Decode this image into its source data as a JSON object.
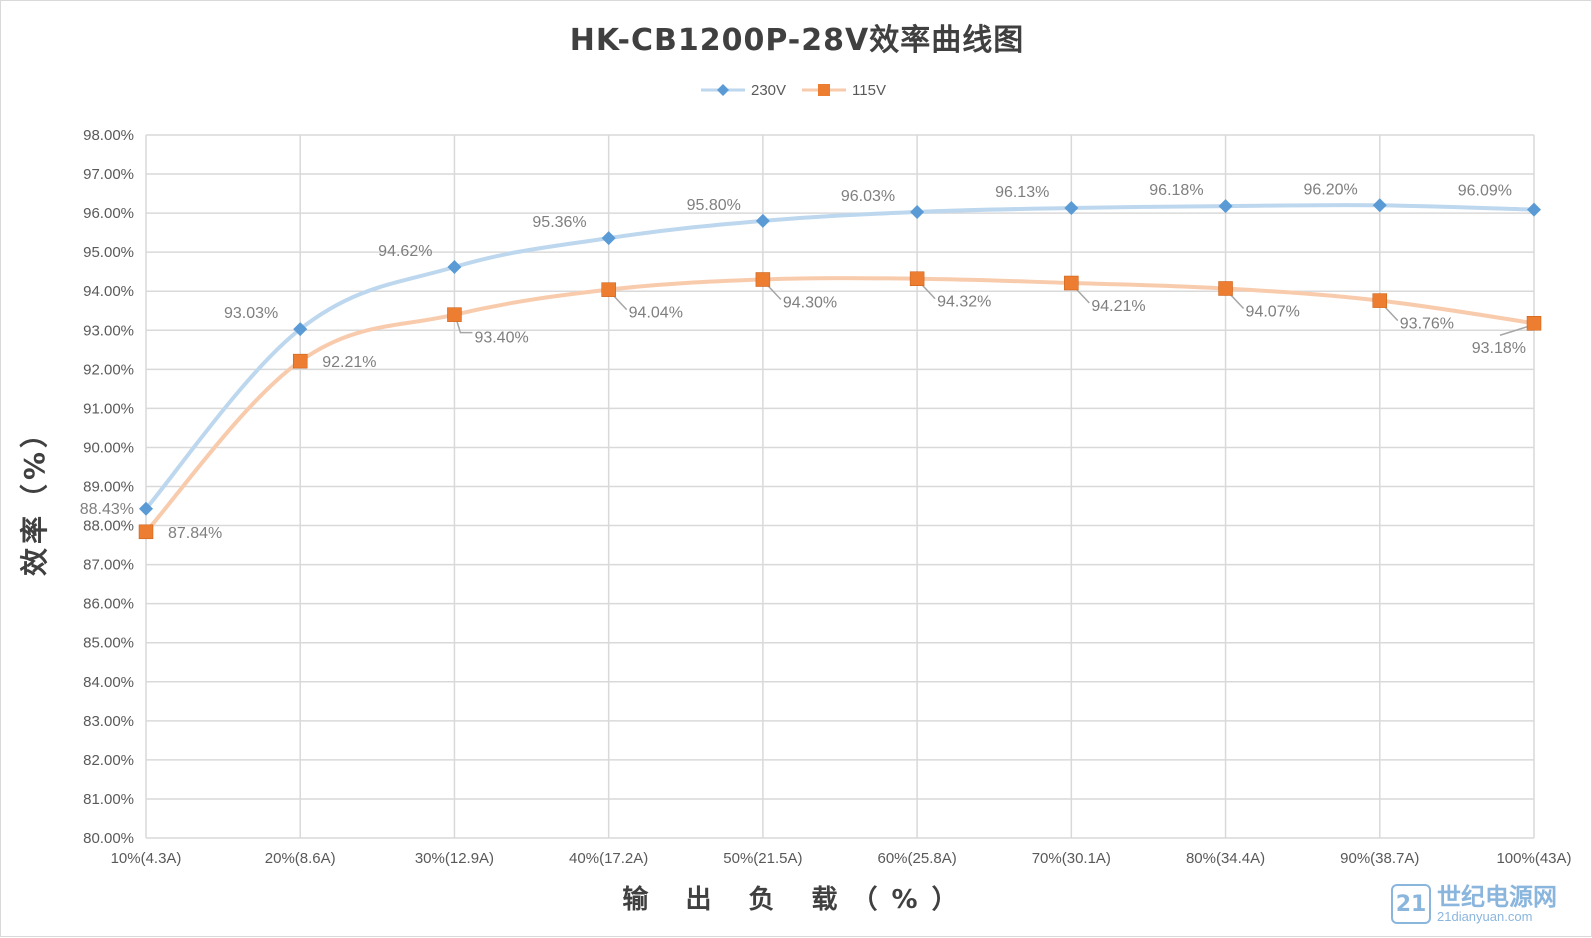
{
  "chart_data": {
    "type": "line",
    "title": "HK-CB1200P-28V效率曲线图",
    "xlabel": "输 出 负 载（%）",
    "ylabel": "效率（%）",
    "categories": [
      "10%(4.3A)",
      "20%(8.6A)",
      "30%(12.9A)",
      "40%(17.2A)",
      "50%(21.5A)",
      "60%(25.8A)",
      "70%(30.1A)",
      "80%(34.4A)",
      "90%(38.7A)",
      "100%(43A)"
    ],
    "ylim": [
      80,
      98
    ],
    "yticks": [
      "80.00%",
      "81.00%",
      "82.00%",
      "83.00%",
      "84.00%",
      "85.00%",
      "86.00%",
      "87.00%",
      "88.00%",
      "89.00%",
      "90.00%",
      "91.00%",
      "92.00%",
      "93.00%",
      "94.00%",
      "95.00%",
      "96.00%",
      "97.00%",
      "98.00%"
    ],
    "grid": true,
    "legend_position": "top",
    "series": [
      {
        "name": "230V",
        "values": [
          88.43,
          93.03,
          94.62,
          95.36,
          95.8,
          96.03,
          96.13,
          96.18,
          96.2,
          96.09
        ],
        "labels": [
          "88.43%",
          "93.03%",
          "94.62%",
          "95.36%",
          "95.80%",
          "96.03%",
          "96.13%",
          "96.18%",
          "96.20%",
          "96.09%"
        ],
        "line_color": "#bdd7ee",
        "marker_color": "#5b9bd5",
        "marker": "diamond"
      },
      {
        "name": "115V",
        "values": [
          87.84,
          92.21,
          93.4,
          94.04,
          94.3,
          94.32,
          94.21,
          94.07,
          93.76,
          93.18
        ],
        "labels": [
          "87.84%",
          "92.21%",
          "93.40%",
          "94.04%",
          "94.30%",
          "94.32%",
          "94.21%",
          "94.07%",
          "93.76%",
          "93.18%"
        ],
        "line_color": "#f8cbad",
        "marker_color": "#ed7d31",
        "marker": "square"
      }
    ]
  },
  "watermark": {
    "badge": "21",
    "name": "世纪电源网",
    "url": "21dianyuan.com"
  }
}
